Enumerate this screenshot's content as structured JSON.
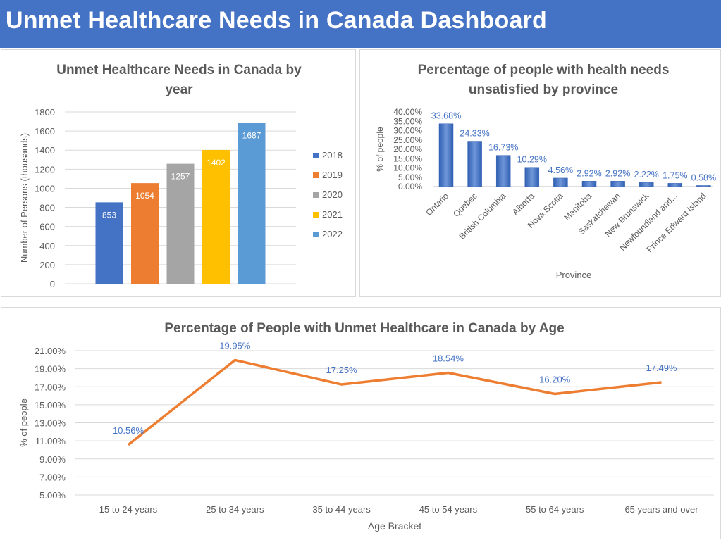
{
  "dashboard": {
    "title": "Unmet Healthcare Needs in Canada Dashboard"
  },
  "colors": {
    "header": "#4472c4",
    "year_2018": "#4472c4",
    "year_2019": "#ed7d31",
    "year_2020": "#a5a5a5",
    "year_2021": "#ffc000",
    "year_2022": "#5b9bd5",
    "province_bar": "#4472c4",
    "age_line": "#ed7d31",
    "data_label_blue": "#4472c4",
    "axis_text": "#595959",
    "title_text": "#595959",
    "gridline": "#d9d9d9"
  },
  "chart_data": [
    {
      "id": "by_year",
      "type": "bar",
      "title_lines": [
        "Unmet Healthcare Needs in Canada by",
        "year"
      ],
      "xlabel": "",
      "ylabel": "Number of Persons (thousands)",
      "categories": [
        "2018",
        "2019",
        "2020",
        "2021",
        "2022"
      ],
      "values": [
        853,
        1054,
        1257,
        1402,
        1687
      ],
      "data_labels": [
        "853",
        "1054",
        "1257",
        "1402",
        "1687"
      ],
      "yticks": [
        "0",
        "200",
        "400",
        "600",
        "800",
        "1000",
        "1200",
        "1400",
        "1600",
        "1800"
      ],
      "ylim": [
        0,
        1800
      ],
      "legend": [
        "2018",
        "2019",
        "2020",
        "2021",
        "2022"
      ],
      "legend_position": "right",
      "grid": true
    },
    {
      "id": "by_province",
      "type": "bar",
      "title_lines": [
        "Percentage of people with health needs",
        "unsatisfied by province"
      ],
      "xlabel": "Province",
      "ylabel": "% of people",
      "categories": [
        "Ontario",
        "Quebec",
        "British Columbia",
        "Alberta",
        "Nova Scotia",
        "Manitoba",
        "Saskatchewan",
        "New Brunswick",
        "Newfoundland and...",
        "Prince Edward Island"
      ],
      "values": [
        33.68,
        24.33,
        16.73,
        10.29,
        4.56,
        2.92,
        2.92,
        2.22,
        1.75,
        0.58
      ],
      "data_labels": [
        "33.68%",
        "24.33%",
        "16.73%",
        "10.29%",
        "4.56%",
        "2.92%",
        "2.92%",
        "2.22%",
        "1.75%",
        "0.58%"
      ],
      "yticks": [
        "0.00%",
        "5.00%",
        "10.00%",
        "15.00%",
        "20.00%",
        "25.00%",
        "30.00%",
        "35.00%",
        "40.00%"
      ],
      "ylim": [
        0,
        40
      ],
      "grid": false
    },
    {
      "id": "by_age",
      "type": "line",
      "title": "Percentage of People with Unmet Healthcare in Canada by Age",
      "xlabel": "Age Bracket",
      "ylabel": "% of people",
      "categories": [
        "15 to 24 years",
        "25 to 34 years",
        "35 to 44 years",
        "45 to 54 years",
        "55 to 64 years",
        "65 years and over"
      ],
      "values": [
        10.56,
        19.95,
        17.25,
        18.54,
        16.2,
        17.49
      ],
      "data_labels": [
        "10.56%",
        "19.95%",
        "17.25%",
        "18.54%",
        "16.20%",
        "17.49%"
      ],
      "yticks": [
        "5.00%",
        "7.00%",
        "9.00%",
        "11.00%",
        "13.00%",
        "15.00%",
        "17.00%",
        "19.00%",
        "21.00%"
      ],
      "ylim": [
        5,
        21
      ],
      "grid": true
    }
  ]
}
